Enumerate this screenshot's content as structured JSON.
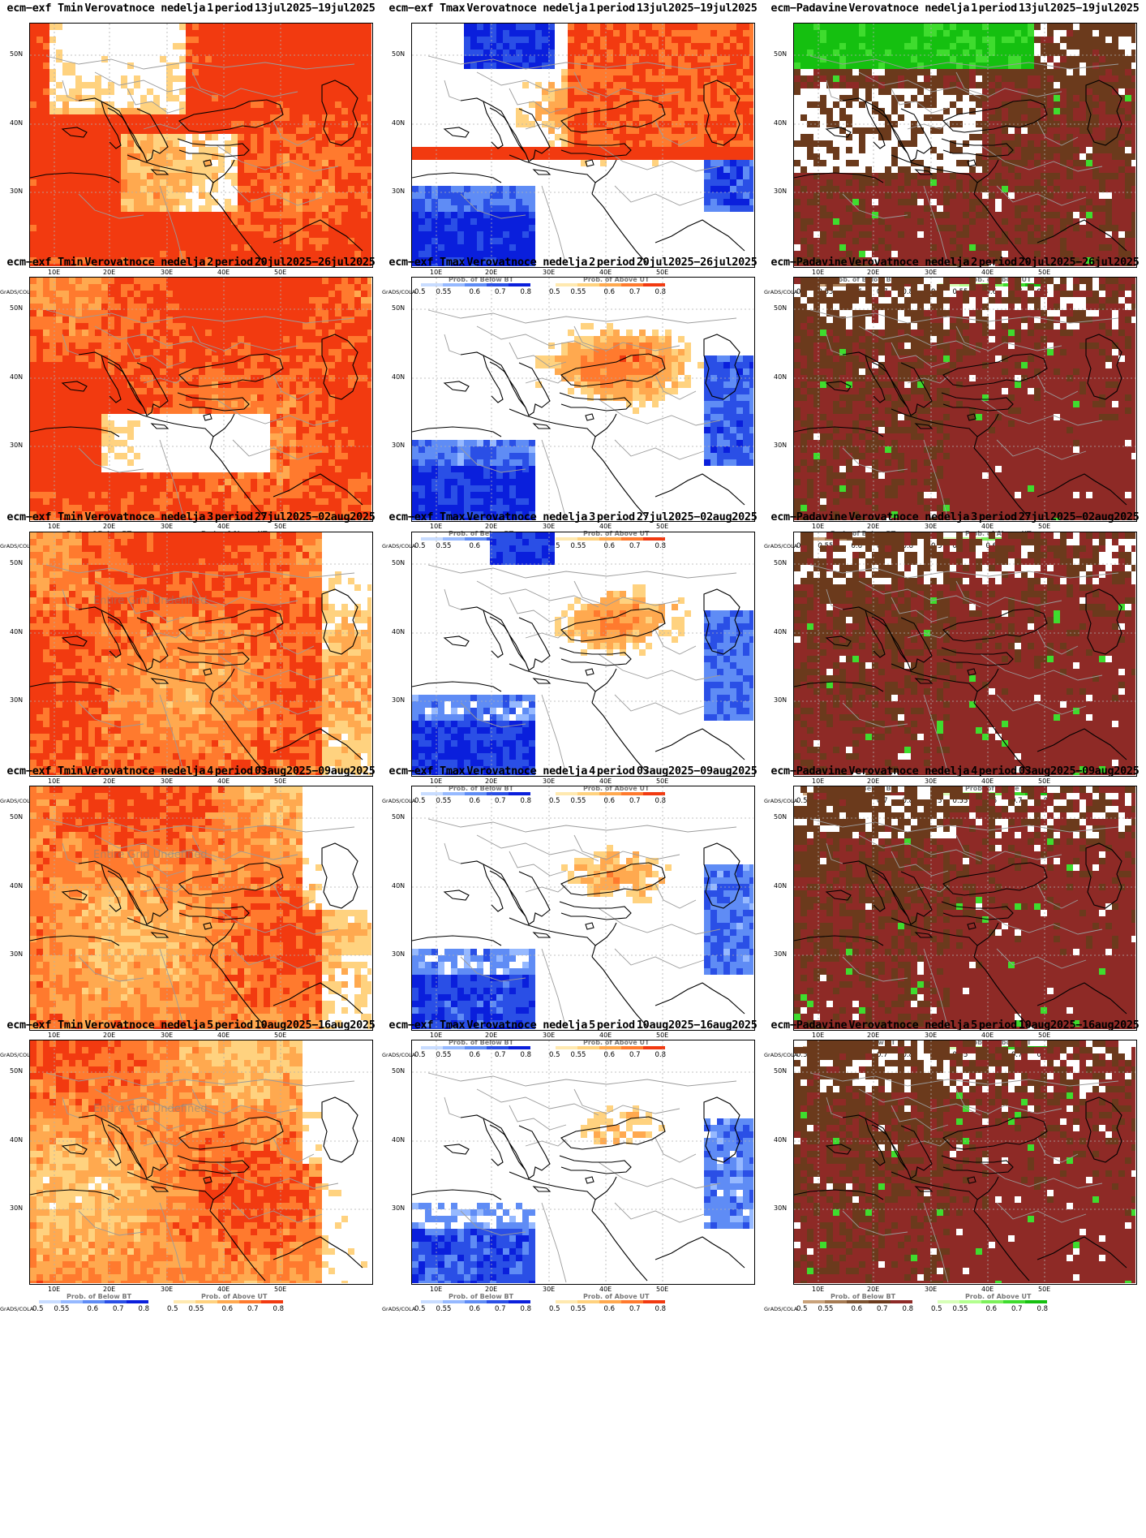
{
  "rows": [
    {
      "week": "1",
      "period": "13jul2025−19jul2025"
    },
    {
      "week": "2",
      "period": "20jul2025−26jul2025"
    },
    {
      "week": "3",
      "period": "27jul2025−02aug2025"
    },
    {
      "week": "4",
      "period": "03aug2025−09aug2025"
    },
    {
      "week": "5",
      "period": "10aug2025−16aug2025"
    }
  ],
  "columns": [
    {
      "prefix": "ecm−exf Tmin",
      "label": "Verovatnoce nedelja",
      "period_word": "period",
      "legend_below": "Prob. of Below BT",
      "legend_above": "Prob. of Above UT",
      "colors_below": [
        "#c8dcff",
        "#96b9ff",
        "#5f8cf5",
        "#2a4fe6",
        "#0a1fdc"
      ],
      "colors_above": [
        "#ffe9b0",
        "#ffd27f",
        "#ffa94f",
        "#ff7a2e",
        "#f23a10"
      ]
    },
    {
      "prefix": "ecm−exf Tmax",
      "label": "Verovatnoce nedelja",
      "period_word": "period",
      "legend_below": "Prob. of Below BT",
      "legend_above": "Prob. of Above UT",
      "colors_below": [
        "#c8dcff",
        "#96b9ff",
        "#5f8cf5",
        "#2a4fe6",
        "#0a1fdc"
      ],
      "colors_above": [
        "#ffe9b0",
        "#ffd27f",
        "#ffa94f",
        "#ff7a2e",
        "#f23a10"
      ]
    },
    {
      "prefix": "ecm−Padavine",
      "label": "Verovatnoce nedelja",
      "period_word": "period",
      "legend_below": "Prob. of Below BT",
      "legend_above": "Prob. of Above UT",
      "colors_below": [
        "#c9a27a",
        "#a57a52",
        "#7d5330",
        "#6b3a1c",
        "#8e2a26"
      ],
      "colors_above": [
        "#d7ffb8",
        "#b3ff8f",
        "#7cf05a",
        "#3fdc2e",
        "#15c010"
      ]
    }
  ],
  "legend_ticks": [
    "0.5",
    "0.55",
    "0.6",
    "0.7",
    "0.8"
  ],
  "lat_labels": [
    "50N",
    "40N",
    "30N"
  ],
  "lon_labels": [
    "10E",
    "20E",
    "30E",
    "40E",
    "50E"
  ],
  "grads_label": "GrADS/COLA",
  "undefined_text": "Entire Grid Undefined",
  "undefined_panels": [
    [
      2,
      0
    ],
    [
      3,
      0
    ],
    [
      4,
      0
    ]
  ],
  "map_style": {
    "land_outline": "#000000",
    "border": "#9b9b9b",
    "grid": "#b0b0b0"
  },
  "panel_fields": [
    [
      "tmin_hot_w1",
      "tmax_mixed_w1",
      "precip_w1"
    ],
    [
      "tmin_hot_w2",
      "tmax_mixed_w2",
      "precip_w2"
    ],
    [
      "tmin_hot_w3",
      "tmax_mixed_w3",
      "precip_w3"
    ],
    [
      "tmin_hot_w4",
      "tmax_mixed_w4",
      "precip_w4"
    ],
    [
      "tmin_hot_w5",
      "tmax_mixed_w5",
      "precip_w5"
    ]
  ]
}
